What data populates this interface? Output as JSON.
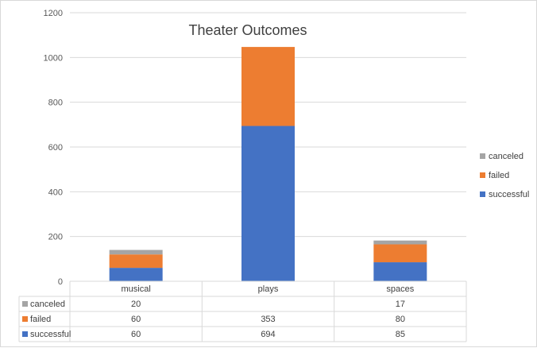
{
  "chart_data": {
    "type": "bar",
    "stacked": true,
    "title": "Theater Outcomes",
    "categories": [
      "musical",
      "plays",
      "spaces"
    ],
    "series": [
      {
        "name": "successful",
        "values": [
          60,
          694,
          85
        ],
        "color": "#4472c4"
      },
      {
        "name": "failed",
        "values": [
          60,
          353,
          80
        ],
        "color": "#ed7d31"
      },
      {
        "name": "canceled",
        "values": [
          20,
          null,
          17
        ],
        "color": "#a5a5a5"
      }
    ],
    "table_labels": {
      "canceled": [
        "20",
        "",
        "17"
      ],
      "failed": [
        "60",
        "353",
        "80"
      ],
      "successful": [
        "60",
        "694",
        "85"
      ]
    },
    "ylim": [
      0,
      1200
    ],
    "yticks": [
      0,
      200,
      400,
      600,
      800,
      1000,
      1200
    ],
    "grid": true,
    "legend": "right",
    "data_table": true
  }
}
